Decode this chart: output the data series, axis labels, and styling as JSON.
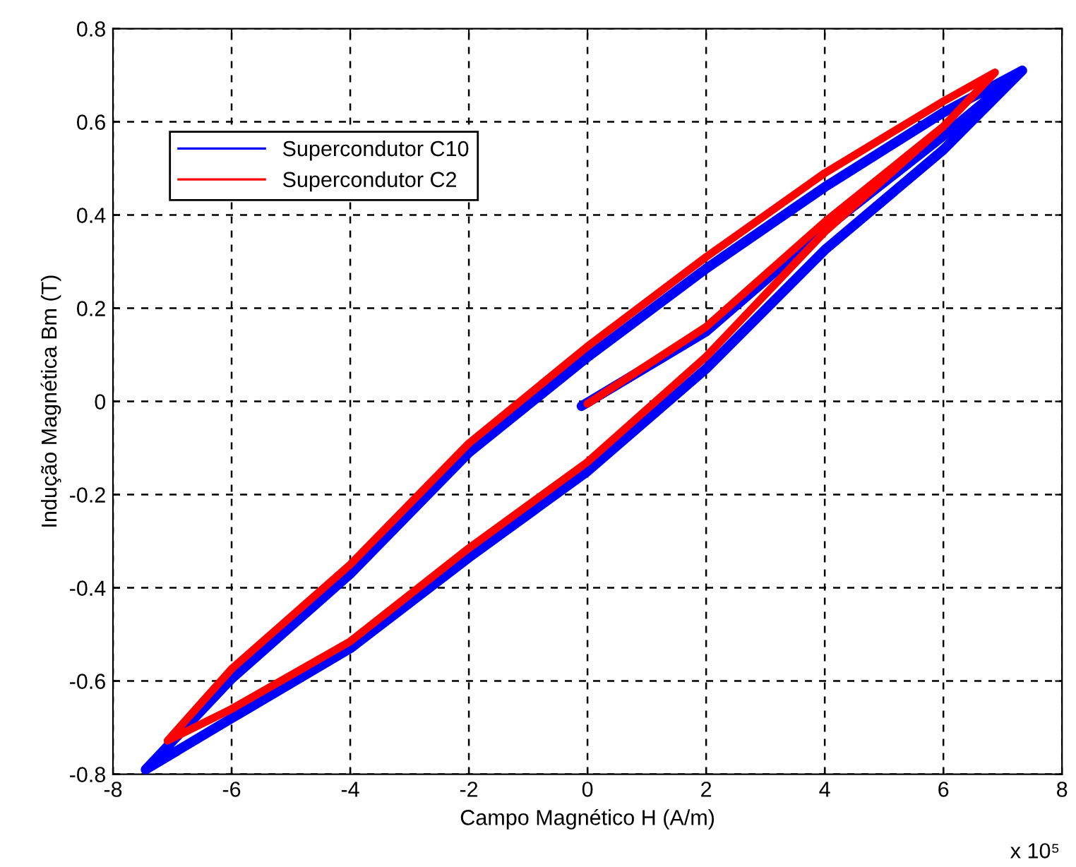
{
  "chart_data": {
    "type": "line",
    "xlabel": "Campo Magnético H (A/m)",
    "ylabel": "Indução Magnética Bm (T)",
    "xlim": [
      -8,
      8
    ],
    "xticks": [
      -8,
      -6,
      -4,
      -2,
      0,
      2,
      4,
      6,
      8
    ],
    "ylim": [
      -0.8,
      0.8
    ],
    "yticks": [
      -0.8,
      -0.6,
      -0.4,
      -0.2,
      0,
      0.2,
      0.4,
      0.6,
      0.8
    ],
    "grid": true,
    "legend": "top left",
    "line_style": "solid",
    "marker": "none",
    "annotations": [
      "x 10⁵"
    ],
    "series": [
      {
        "name": "Supercondutor C10",
        "color": "#0000ff",
        "x": [
          -0.1,
          2,
          4,
          6,
          7.33,
          6,
          4,
          2,
          0,
          -2,
          -4,
          -6,
          -7.45,
          -6,
          -4,
          -2,
          0,
          2,
          4,
          6,
          7.33
        ],
        "values": [
          -0.01,
          0.15,
          0.37,
          0.57,
          0.71,
          0.62,
          0.46,
          0.285,
          0.095,
          -0.11,
          -0.37,
          -0.595,
          -0.79,
          -0.68,
          -0.53,
          -0.335,
          -0.15,
          0.07,
          0.325,
          0.54,
          0.71
        ]
      },
      {
        "name": "Supercondutor C2",
        "color": "#ff0000",
        "x": [
          0,
          2,
          4,
          6,
          6.87,
          6,
          4,
          2,
          0,
          -2,
          -4,
          -6,
          -7.08,
          -6,
          -4,
          -2,
          0,
          2,
          4,
          6,
          6.87
        ],
        "values": [
          -0.005,
          0.16,
          0.385,
          0.59,
          0.706,
          0.644,
          0.49,
          0.31,
          0.118,
          -0.09,
          -0.35,
          -0.574,
          -0.728,
          -0.66,
          -0.515,
          -0.315,
          -0.13,
          0.096,
          0.364,
          0.59,
          0.706
        ]
      }
    ]
  }
}
